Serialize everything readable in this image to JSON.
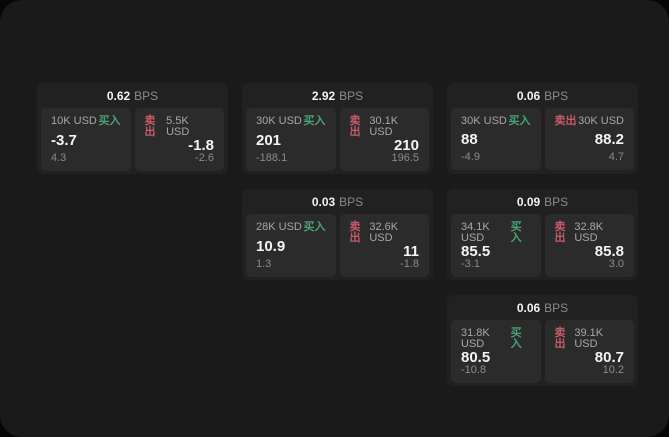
{
  "theme": {
    "outer_bg": "#060606",
    "panel_bg": "#1a1a1b",
    "card_bg": "#212122",
    "subcard_bg": "#2b2b2c",
    "text_primary": "#f4f4f4",
    "text_secondary": "#a7a7a7",
    "text_muted": "#8b8b8b",
    "buy_color": "#48a277",
    "sell_color": "#c75a68"
  },
  "labels": {
    "bps": "BPS",
    "buy": "买入",
    "sell": "卖出"
  },
  "cards": [
    {
      "bps": "0.62",
      "buy": {
        "amount": "10K USD",
        "value": "-3.7",
        "delta": "4.3"
      },
      "sell": {
        "amount": "5.5K USD",
        "value": "-1.8",
        "delta": "-2.6"
      }
    },
    {
      "bps": "2.92",
      "buy": {
        "amount": "30K USD",
        "value": "201",
        "delta": "-188.1"
      },
      "sell": {
        "amount": "30.1K USD",
        "value": "210",
        "delta": "196.5"
      }
    },
    {
      "bps": "0.06",
      "buy": {
        "amount": "30K USD",
        "value": "88",
        "delta": "-4.9"
      },
      "sell": {
        "amount": "30K USD",
        "value": "88.2",
        "delta": "4.7"
      }
    },
    {
      "bps": "0.03",
      "buy": {
        "amount": "28K USD",
        "value": "10.9",
        "delta": "1.3"
      },
      "sell": {
        "amount": "32.6K USD",
        "value": "11",
        "delta": "-1.8"
      }
    },
    {
      "bps": "0.09",
      "buy": {
        "amount": "34.1K USD",
        "value": "85.5",
        "delta": "-3.1"
      },
      "sell": {
        "amount": "32.8K USD",
        "value": "85.8",
        "delta": "3.0"
      }
    },
    {
      "bps": "0.06",
      "buy": {
        "amount": "31.8K USD",
        "value": "80.5",
        "delta": "-10.8"
      },
      "sell": {
        "amount": "39.1K USD",
        "value": "80.7",
        "delta": "10.2"
      }
    }
  ]
}
